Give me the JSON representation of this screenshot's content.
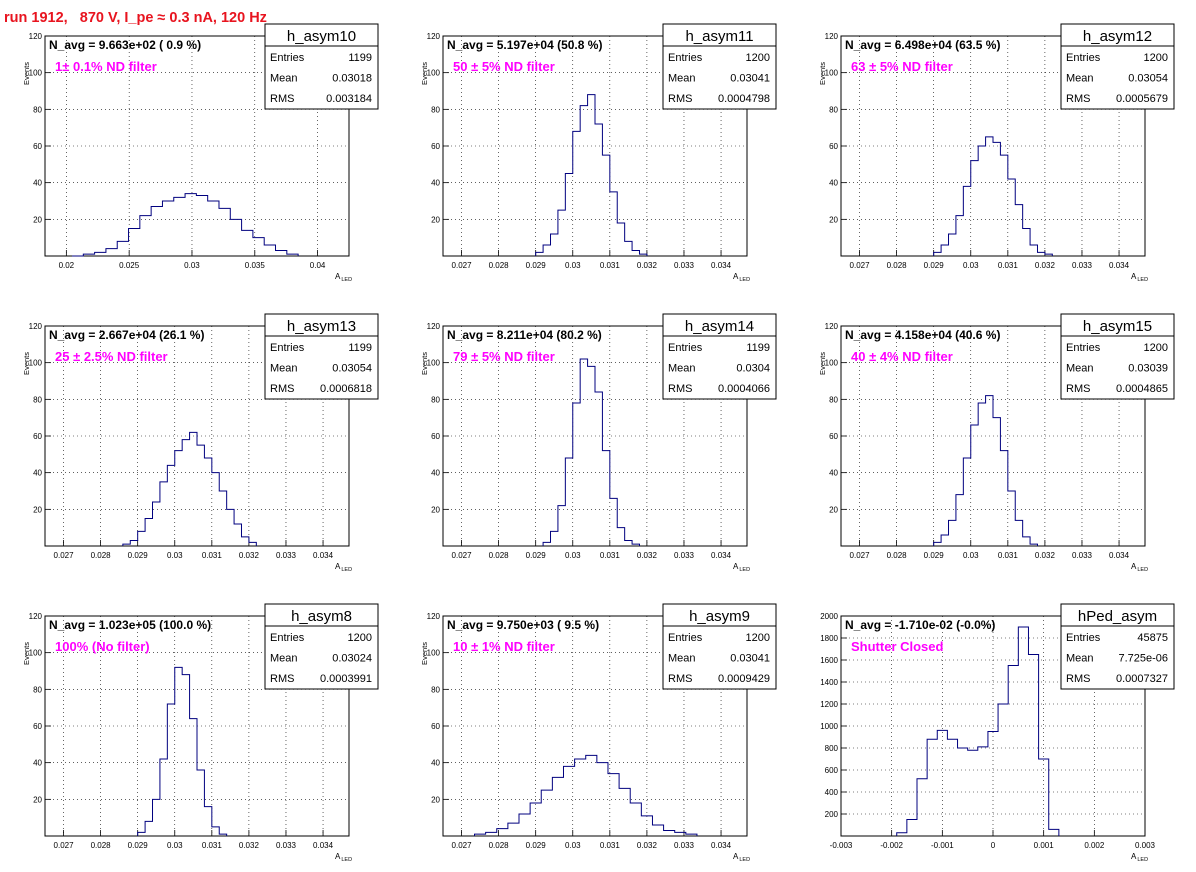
{
  "page": {
    "title": "run 1912,   870 V, I_pe ≈ 0.3 nA, 120 Hz"
  },
  "style": {
    "title_color": "#e8141f",
    "hist_color": "#00007f",
    "annotation_color": "#ff00ff",
    "grid_color": "#000000"
  },
  "chart_data": [
    {
      "type": "histogram",
      "name": "h_asym10",
      "header": "N_avg = 9.663e+02 ( 0.9 %)",
      "annotation": "1± 0.1% ND filter",
      "stats": {
        "entries": "1199",
        "mean": "0.03018",
        "rms": "0.003184"
      },
      "xlabel": "A",
      "xlabel_sub": "LED",
      "ylabel": "Events",
      "xlim": [
        0.0183,
        0.0425
      ],
      "ylim": [
        0,
        120
      ],
      "xticks": [
        0.02,
        0.025,
        0.03,
        0.035,
        0.04
      ],
      "xtick_labels": [
        "0.02",
        "0.025",
        "0.03",
        "0.035",
        "0.04"
      ],
      "yticks": [
        20,
        40,
        60,
        80,
        100,
        120
      ],
      "ytick_labels": [
        "20",
        "40",
        "60",
        "80",
        "100",
        "120"
      ],
      "grid": true,
      "grid_style": "dotted",
      "x": [
        0.0209,
        0.0218,
        0.0227,
        0.0236,
        0.0245,
        0.0254,
        0.0263,
        0.0272,
        0.0281,
        0.029,
        0.0299,
        0.0308,
        0.0317,
        0.0326,
        0.0335,
        0.0344,
        0.0353,
        0.0362,
        0.0371,
        0.038
      ],
      "y": [
        0,
        1,
        2,
        4,
        8,
        15,
        22,
        27,
        30,
        32,
        34,
        33,
        30,
        26,
        20,
        14,
        10,
        6,
        3,
        1
      ]
    },
    {
      "type": "histogram",
      "name": "h_asym11",
      "header": "N_avg = 5.197e+04 (50.8 %)",
      "annotation": "50 ± 5% ND filter",
      "stats": {
        "entries": "1200",
        "mean": "0.03041",
        "rms": "0.0004798"
      },
      "xlabel": "A",
      "xlabel_sub": "LED",
      "ylabel": "Events",
      "xlim": [
        0.0265,
        0.0347
      ],
      "ylim": [
        0,
        120
      ],
      "xticks": [
        0.027,
        0.028,
        0.029,
        0.03,
        0.031,
        0.032,
        0.033,
        0.034
      ],
      "xtick_labels": [
        "0.027",
        "0.028",
        "0.029",
        "0.03",
        "0.031",
        "0.032",
        "0.033",
        "0.034"
      ],
      "yticks": [
        20,
        40,
        60,
        80,
        100,
        120
      ],
      "ytick_labels": [
        "20",
        "40",
        "60",
        "80",
        "100",
        "120"
      ],
      "grid": true,
      "grid_style": "dotted",
      "x": [
        0.0291,
        0.0293,
        0.0295,
        0.0297,
        0.0299,
        0.0301,
        0.0303,
        0.0305,
        0.0307,
        0.0309,
        0.0311,
        0.0313,
        0.0315,
        0.0317,
        0.0319
      ],
      "y": [
        2,
        6,
        12,
        25,
        45,
        68,
        82,
        88,
        72,
        55,
        35,
        18,
        8,
        3,
        1
      ]
    },
    {
      "type": "histogram",
      "name": "h_asym12",
      "header": "N_avg = 6.498e+04 (63.5 %)",
      "annotation": "63 ± 5% ND filter",
      "stats": {
        "entries": "1200",
        "mean": "0.03054",
        "rms": "0.0005679"
      },
      "xlabel": "A",
      "xlabel_sub": "LED",
      "ylabel": "Events",
      "xlim": [
        0.0265,
        0.0347
      ],
      "ylim": [
        0,
        120
      ],
      "xticks": [
        0.027,
        0.028,
        0.029,
        0.03,
        0.031,
        0.032,
        0.033,
        0.034
      ],
      "xtick_labels": [
        "0.027",
        "0.028",
        "0.029",
        "0.03",
        "0.031",
        "0.032",
        "0.033",
        "0.034"
      ],
      "yticks": [
        20,
        40,
        60,
        80,
        100,
        120
      ],
      "ytick_labels": [
        "20",
        "40",
        "60",
        "80",
        "100",
        "120"
      ],
      "grid": true,
      "grid_style": "dotted",
      "x": [
        0.0291,
        0.0293,
        0.0295,
        0.0297,
        0.0299,
        0.0301,
        0.0303,
        0.0305,
        0.0307,
        0.0309,
        0.0311,
        0.0313,
        0.0315,
        0.0317,
        0.0319,
        0.0321
      ],
      "y": [
        2,
        6,
        12,
        22,
        38,
        52,
        60,
        65,
        62,
        55,
        42,
        28,
        15,
        6,
        2,
        1
      ]
    },
    {
      "type": "histogram",
      "name": "h_asym13",
      "header": "N_avg = 2.667e+04 (26.1 %)",
      "annotation": "25 ± 2.5% ND filter",
      "stats": {
        "entries": "1199",
        "mean": "0.03054",
        "rms": "0.0006818"
      },
      "xlabel": "A",
      "xlabel_sub": "LED",
      "ylabel": "Events",
      "xlim": [
        0.0265,
        0.0347
      ],
      "ylim": [
        0,
        120
      ],
      "xticks": [
        0.027,
        0.028,
        0.029,
        0.03,
        0.031,
        0.032,
        0.033,
        0.034
      ],
      "xtick_labels": [
        "0.027",
        "0.028",
        "0.029",
        "0.03",
        "0.031",
        "0.032",
        "0.033",
        "0.034"
      ],
      "yticks": [
        20,
        40,
        60,
        80,
        100,
        120
      ],
      "ytick_labels": [
        "20",
        "40",
        "60",
        "80",
        "100",
        "120"
      ],
      "grid": true,
      "grid_style": "dotted",
      "x": [
        0.0287,
        0.0289,
        0.0291,
        0.0293,
        0.0295,
        0.0297,
        0.0299,
        0.0301,
        0.0303,
        0.0305,
        0.0307,
        0.0309,
        0.0311,
        0.0313,
        0.0315,
        0.0317,
        0.0319,
        0.0321
      ],
      "y": [
        1,
        3,
        8,
        15,
        24,
        35,
        44,
        52,
        58,
        62,
        55,
        48,
        40,
        30,
        20,
        12,
        5,
        2
      ]
    },
    {
      "type": "histogram",
      "name": "h_asym14",
      "header": "N_avg = 8.211e+04 (80.2 %)",
      "annotation": "79 ± 5% ND filter",
      "stats": {
        "entries": "1199",
        "mean": "0.0304",
        "rms": "0.0004066"
      },
      "xlabel": "A",
      "xlabel_sub": "LED",
      "ylabel": "Events",
      "xlim": [
        0.0265,
        0.0347
      ],
      "ylim": [
        0,
        120
      ],
      "xticks": [
        0.027,
        0.028,
        0.029,
        0.03,
        0.031,
        0.032,
        0.033,
        0.034
      ],
      "xtick_labels": [
        "0.027",
        "0.028",
        "0.029",
        "0.03",
        "0.031",
        "0.032",
        "0.033",
        "0.034"
      ],
      "yticks": [
        20,
        40,
        60,
        80,
        100,
        120
      ],
      "ytick_labels": [
        "20",
        "40",
        "60",
        "80",
        "100",
        "120"
      ],
      "grid": true,
      "grid_style": "dotted",
      "x": [
        0.0293,
        0.0295,
        0.0297,
        0.0299,
        0.0301,
        0.0303,
        0.0305,
        0.0307,
        0.0309,
        0.0311,
        0.0313,
        0.0315,
        0.0317
      ],
      "y": [
        2,
        8,
        22,
        48,
        78,
        102,
        98,
        84,
        52,
        26,
        10,
        3,
        1
      ]
    },
    {
      "type": "histogram",
      "name": "h_asym15",
      "header": "N_avg = 4.158e+04 (40.6 %)",
      "annotation": "40 ± 4% ND filter",
      "stats": {
        "entries": "1200",
        "mean": "0.03039",
        "rms": "0.0004865"
      },
      "xlabel": "A",
      "xlabel_sub": "LED",
      "ylabel": "Events",
      "xlim": [
        0.0265,
        0.0347
      ],
      "ylim": [
        0,
        120
      ],
      "xticks": [
        0.027,
        0.028,
        0.029,
        0.03,
        0.031,
        0.032,
        0.033,
        0.034
      ],
      "xtick_labels": [
        "0.027",
        "0.028",
        "0.029",
        "0.03",
        "0.031",
        "0.032",
        "0.033",
        "0.034"
      ],
      "yticks": [
        20,
        40,
        60,
        80,
        100,
        120
      ],
      "ytick_labels": [
        "20",
        "40",
        "60",
        "80",
        "100",
        "120"
      ],
      "grid": true,
      "grid_style": "dotted",
      "x": [
        0.0291,
        0.0293,
        0.0295,
        0.0297,
        0.0299,
        0.0301,
        0.0303,
        0.0305,
        0.0307,
        0.0309,
        0.0311,
        0.0313,
        0.0315,
        0.0317
      ],
      "y": [
        2,
        6,
        14,
        28,
        48,
        66,
        78,
        82,
        70,
        52,
        30,
        14,
        5,
        1
      ]
    },
    {
      "type": "histogram",
      "name": "h_asym8",
      "header": "N_avg = 1.023e+05 (100.0 %)",
      "annotation": "100% (No filter)",
      "stats": {
        "entries": "1200",
        "mean": "0.03024",
        "rms": "0.0003991"
      },
      "xlabel": "A",
      "xlabel_sub": "LED",
      "ylabel": "Events",
      "xlim": [
        0.0265,
        0.0347
      ],
      "ylim": [
        0,
        120
      ],
      "xticks": [
        0.027,
        0.028,
        0.029,
        0.03,
        0.031,
        0.032,
        0.033,
        0.034
      ],
      "xtick_labels": [
        "0.027",
        "0.028",
        "0.029",
        "0.03",
        "0.031",
        "0.032",
        "0.033",
        "0.034"
      ],
      "yticks": [
        20,
        40,
        60,
        80,
        100,
        120
      ],
      "ytick_labels": [
        "20",
        "40",
        "60",
        "80",
        "100",
        "120"
      ],
      "grid": true,
      "grid_style": "dotted",
      "x": [
        0.0291,
        0.0293,
        0.0295,
        0.0297,
        0.0299,
        0.0301,
        0.0303,
        0.0305,
        0.0307,
        0.0309,
        0.0311,
        0.0313
      ],
      "y": [
        2,
        8,
        20,
        42,
        72,
        92,
        88,
        64,
        36,
        16,
        5,
        1
      ]
    },
    {
      "type": "histogram",
      "name": "h_asym9",
      "header": "N_avg = 9.750e+03 ( 9.5 %)",
      "annotation": "10 ± 1% ND filter",
      "stats": {
        "entries": "1200",
        "mean": "0.03041",
        "rms": "0.0009429"
      },
      "xlabel": "A",
      "xlabel_sub": "LED",
      "ylabel": "Events",
      "xlim": [
        0.0265,
        0.0347
      ],
      "ylim": [
        0,
        120
      ],
      "xticks": [
        0.027,
        0.028,
        0.029,
        0.03,
        0.031,
        0.032,
        0.033,
        0.034
      ],
      "xtick_labels": [
        "0.027",
        "0.028",
        "0.029",
        "0.03",
        "0.031",
        "0.032",
        "0.033",
        "0.034"
      ],
      "yticks": [
        20,
        40,
        60,
        80,
        100,
        120
      ],
      "ytick_labels": [
        "20",
        "40",
        "60",
        "80",
        "100",
        "120"
      ],
      "grid": true,
      "grid_style": "dotted",
      "x": [
        0.0275,
        0.0278,
        0.0281,
        0.0284,
        0.0287,
        0.029,
        0.0293,
        0.0296,
        0.0299,
        0.0302,
        0.0305,
        0.0308,
        0.0311,
        0.0314,
        0.0317,
        0.032,
        0.0323,
        0.0326,
        0.0329,
        0.0332
      ],
      "y": [
        1,
        2,
        4,
        7,
        12,
        18,
        25,
        32,
        38,
        42,
        44,
        40,
        34,
        26,
        18,
        11,
        6,
        3,
        2,
        1
      ]
    },
    {
      "type": "histogram",
      "name": "hPed_asym",
      "header": "N_avg = -1.710e-02 (-0.0%)",
      "annotation": "Shutter Closed",
      "stats": {
        "entries": "45875",
        "mean": "7.725e-06",
        "rms": "0.0007327"
      },
      "xlabel": "A",
      "xlabel_sub": "LED",
      "ylabel": "",
      "xlim": [
        -0.003,
        0.003
      ],
      "ylim": [
        0,
        2000
      ],
      "xticks": [
        -0.003,
        -0.002,
        -0.001,
        0,
        0.001,
        0.002,
        0.003
      ],
      "xtick_labels": [
        "-0.003",
        "-0.002",
        "-0.001",
        "0",
        "0.001",
        "0.002",
        "0.003"
      ],
      "yticks": [
        200,
        400,
        600,
        800,
        1000,
        1200,
        1400,
        1600,
        1800,
        2000
      ],
      "ytick_labels": [
        "200",
        "400",
        "600",
        "800",
        "1000",
        "1200",
        "1400",
        "1600",
        "1800",
        "2000"
      ],
      "grid": true,
      "grid_style": "dotted",
      "x": [
        -0.0018,
        -0.0016,
        -0.0014,
        -0.0012,
        -0.001,
        -0.0008,
        -0.0006,
        -0.0004,
        -0.0002,
        0,
        0.0002,
        0.0004,
        0.0006,
        0.0008,
        0.001,
        0.0012
      ],
      "y": [
        30,
        150,
        520,
        880,
        960,
        880,
        800,
        780,
        810,
        950,
        1200,
        1550,
        1900,
        1650,
        700,
        60
      ]
    }
  ]
}
